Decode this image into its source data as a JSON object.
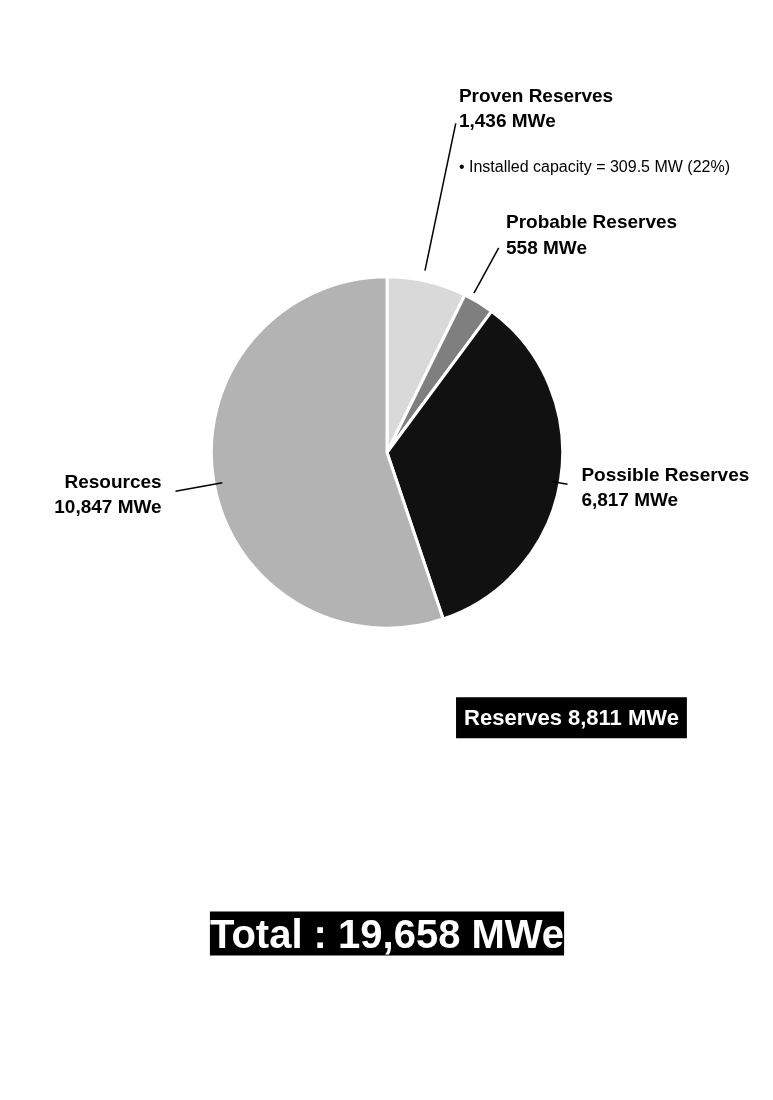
{
  "chart_data": {
    "type": "pie",
    "title": "Total : 19,658 MWe",
    "categories": [
      "Proven Reserves",
      "Probable Reserves",
      "Possible Reserves",
      "Resources"
    ],
    "values": [
      1436,
      558,
      6817,
      10847
    ],
    "value_labels": [
      "1,436 MWe",
      "558 MWe",
      "6,817 MWe",
      "10,847 MWe"
    ],
    "colors": [
      "#d9d9d9",
      "#7f7f7f",
      "#111111",
      "#b3b3b3"
    ],
    "annotations": [
      "• Installed capacity = 309.5 MW (22%)",
      "Reserves 8,811 MWe"
    ]
  }
}
